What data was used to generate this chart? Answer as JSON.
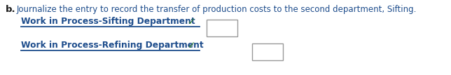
{
  "title_b": "b.",
  "title_text": "Journalize the entry to record the transfer of production costs to the second department, Sifting.",
  "title_color": "#1a1a1a",
  "title_fontsize": 8.5,
  "line1_text": "Work in Process-Sifting Department",
  "line2_text": "Work in Process-Refining Department",
  "line_color": "#1e4d8c",
  "underline_color": "#1e4d8c",
  "check_color": "#2e7d32",
  "box_edge_color": "#999999",
  "background_color": "#ffffff",
  "font_size_lines": 8.8,
  "b_fontsize": 9.5,
  "fig_width": 6.44,
  "fig_height": 1.07,
  "dpi": 100
}
